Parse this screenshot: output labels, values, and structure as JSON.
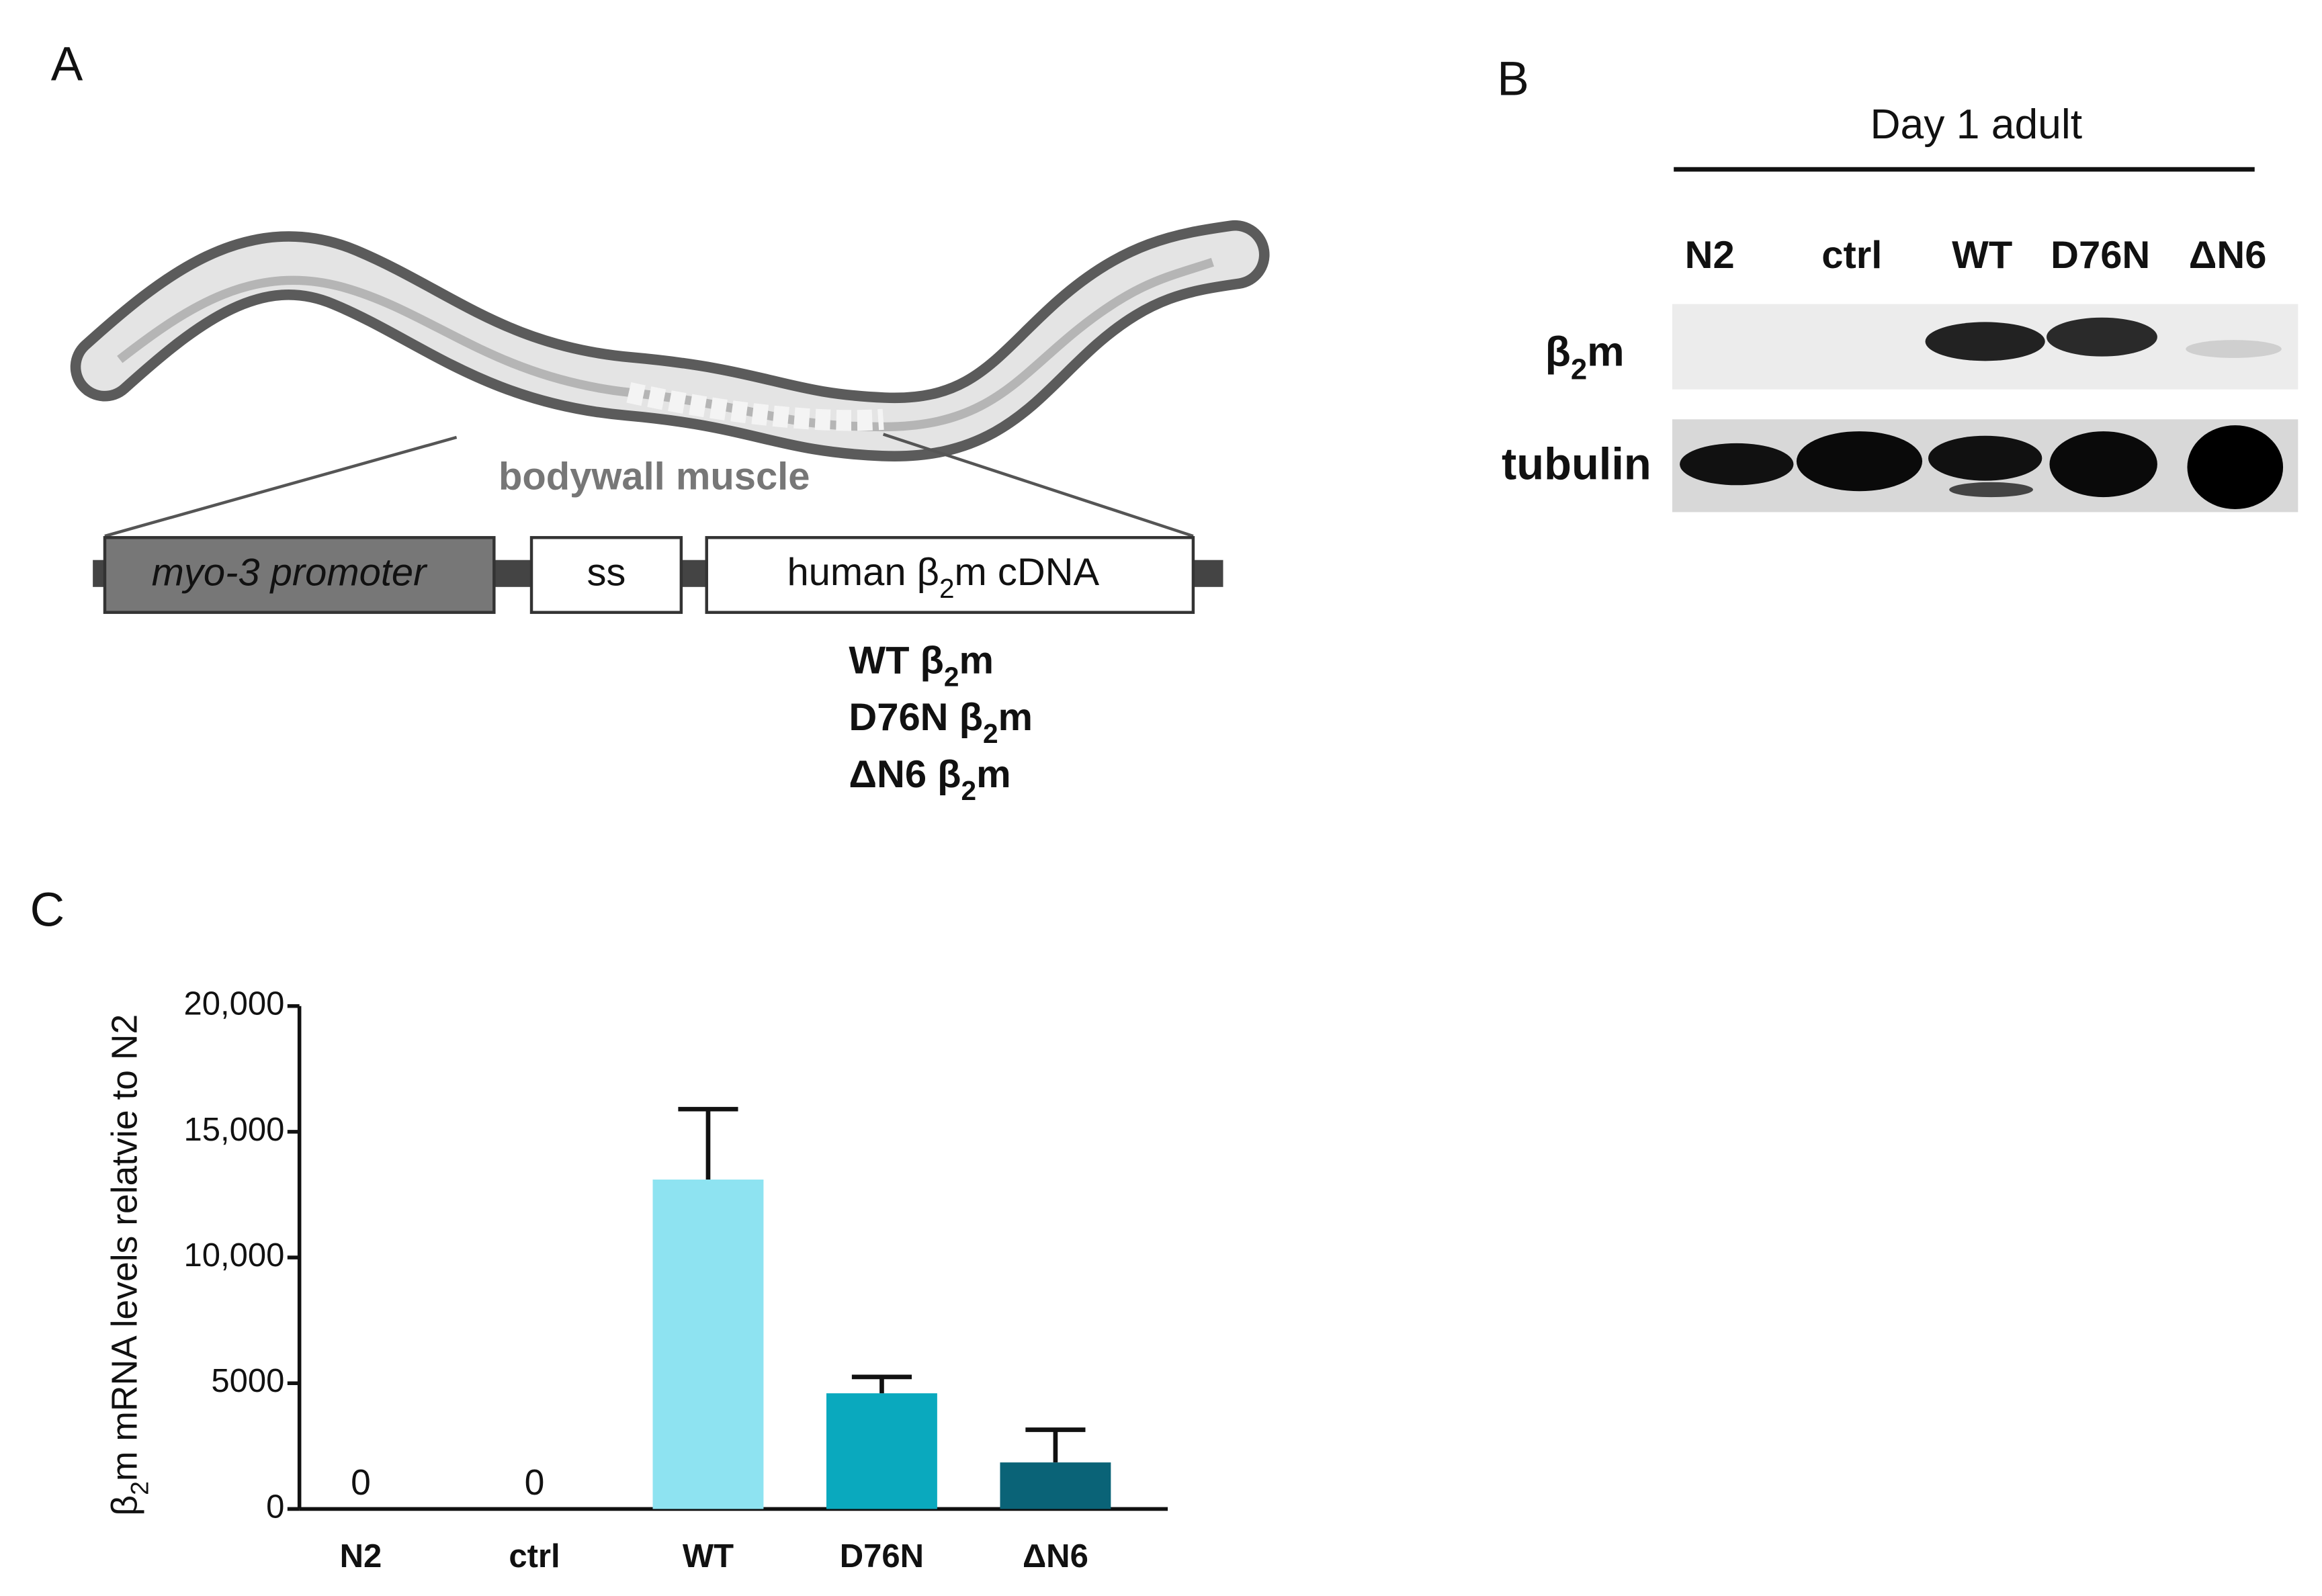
{
  "panel_a": {
    "label": "A",
    "caption": "bodywall muscle",
    "construct": {
      "promoter": "myo-3 promoter",
      "signal": "ss",
      "cdna": [
        "human β",
        "2",
        "m cDNA"
      ]
    },
    "variants": [
      [
        "WT β",
        "2",
        "m"
      ],
      [
        "D76N β",
        "2",
        "m"
      ],
      [
        "ΔN6 β",
        "2",
        "m"
      ]
    ]
  },
  "panel_b": {
    "label": "B",
    "stage": "Day 1 adult",
    "lanes": [
      "N2",
      "ctrl",
      "WT",
      "D76N",
      "ΔN6"
    ],
    "rows": [
      [
        "β",
        "2",
        "m"
      ],
      [
        "tubulin"
      ]
    ]
  },
  "panel_c_label": "C",
  "chart_data": {
    "type": "bar",
    "y_label": [
      "β",
      "2",
      "m mRNA levels relatvie to N2"
    ],
    "categories": [
      "N2",
      "ctrl",
      "WT",
      "D76N",
      "ΔN6"
    ],
    "values": [
      0,
      0,
      13100,
      4600,
      1850
    ],
    "errors": [
      null,
      null,
      2800,
      650,
      1300
    ],
    "value_labels": [
      "0",
      "0",
      null,
      null,
      null
    ],
    "colors": [
      "#8ee3f1",
      "#8ee3f1",
      "#8ee3f1",
      "#0aa9be",
      "#0a6377"
    ],
    "ylim": [
      0,
      20000
    ],
    "yticks": [
      0,
      5000,
      {
        "value": 10000,
        "label": "10,000"
      },
      {
        "value": 15000,
        "label": "15,000"
      },
      {
        "value": 20000,
        "label": "20,000"
      }
    ]
  }
}
